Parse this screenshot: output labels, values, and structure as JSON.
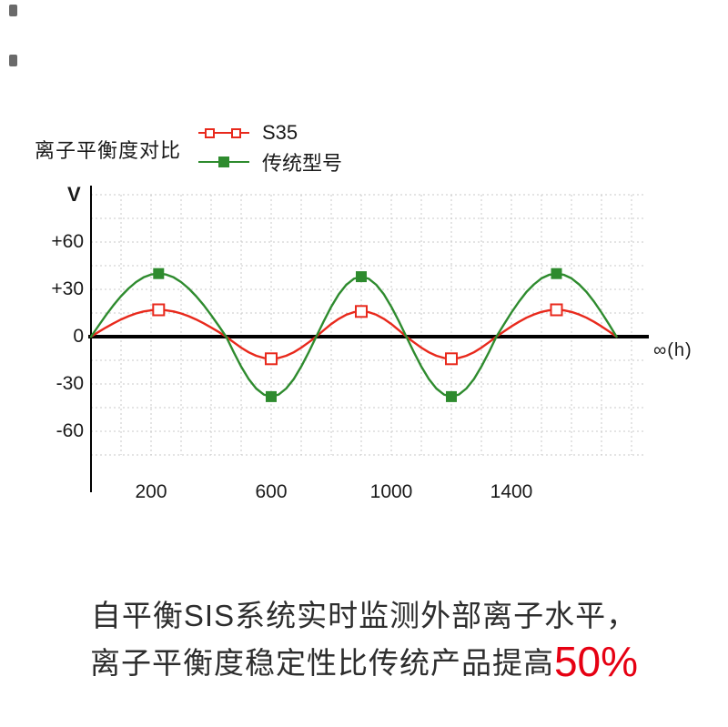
{
  "chart_data": {
    "type": "line",
    "title": "离子平衡度对比",
    "ylabel": "V",
    "x_axis_end_label": "∞(h)",
    "grid": true,
    "legend_position": "top",
    "xlim": [
      0,
      1850
    ],
    "ylim": [
      -75,
      95
    ],
    "y_ticks": [
      {
        "label": "+60",
        "value": 60
      },
      {
        "label": "+30",
        "value": 30
      },
      {
        "label": "0",
        "value": 0
      },
      {
        "label": "-30",
        "value": -30
      },
      {
        "label": "-60",
        "value": -60
      }
    ],
    "x_ticks": [
      {
        "label": "200",
        "value": 200
      },
      {
        "label": "600",
        "value": 600
      },
      {
        "label": "1000",
        "value": 1000
      },
      {
        "label": "1400",
        "value": 1400
      }
    ],
    "x": [
      0,
      25,
      50,
      75,
      100,
      125,
      150,
      175,
      200,
      225,
      250,
      275,
      300,
      325,
      350,
      375,
      400,
      425,
      450,
      475,
      500,
      525,
      550,
      575,
      600,
      625,
      650,
      675,
      700,
      725,
      750,
      775,
      800,
      825,
      850,
      875,
      900,
      925,
      950,
      975,
      1000,
      1025,
      1050,
      1075,
      1100,
      1125,
      1150,
      1175,
      1200,
      1225,
      1250,
      1275,
      1300,
      1325,
      1350,
      1375,
      1400,
      1425,
      1450,
      1475,
      1500,
      1525,
      1550,
      1575,
      1600,
      1625,
      1650,
      1675,
      1700,
      1725,
      1750
    ],
    "series": [
      {
        "name": "S35",
        "color": "#e8291c",
        "marker": "open-square",
        "values": [
          0,
          3,
          5.8,
          8.5,
          10.9,
          13,
          14.7,
          16,
          16.7,
          17,
          16.7,
          16,
          14.7,
          13,
          10.9,
          8.5,
          5.8,
          3,
          0,
          -3.6,
          -7,
          -9.9,
          -12.1,
          -13.5,
          -14,
          -13.5,
          -12.1,
          -9.9,
          -7,
          -3.6,
          0,
          4.1,
          8,
          11.3,
          13.9,
          15.5,
          16,
          15.5,
          13.9,
          11.3,
          8,
          4.1,
          0,
          -3.6,
          -7,
          -9.9,
          -12.1,
          -13.5,
          -14,
          -13.5,
          -12.1,
          -9.9,
          -7,
          -3.6,
          0,
          3.3,
          6.5,
          9.4,
          12,
          14.1,
          15.7,
          16.7,
          17,
          16.7,
          15.7,
          14.1,
          12,
          9.4,
          6.5,
          3.3,
          0
        ],
        "marker_points": [
          [
            225,
            17
          ],
          [
            600,
            -14
          ],
          [
            900,
            16
          ],
          [
            1200,
            -14
          ],
          [
            1550,
            17
          ]
        ]
      },
      {
        "name": "传统型号",
        "color": "#2e8b2e",
        "marker": "filled-square",
        "values": [
          0,
          6.9,
          13.7,
          20,
          25.7,
          30.6,
          34.6,
          37.6,
          39.4,
          40,
          39.4,
          37.6,
          34.6,
          30.6,
          25.7,
          20,
          13.7,
          6.9,
          0,
          -9.8,
          -19,
          -26.9,
          -32.9,
          -36.7,
          -38,
          -36.7,
          -32.9,
          -26.9,
          -19,
          -9.8,
          0,
          9.8,
          19,
          26.9,
          32.9,
          36.7,
          38,
          36.7,
          32.9,
          26.9,
          19,
          9.8,
          0,
          -9.8,
          -19,
          -26.9,
          -32.9,
          -36.7,
          -38,
          -36.7,
          -32.9,
          -26.9,
          -19,
          -9.8,
          0,
          7.8,
          15.3,
          22.2,
          28.3,
          33.2,
          37,
          39.2,
          40,
          39.2,
          37,
          33.2,
          28.3,
          22.2,
          15.3,
          7.8,
          0
        ],
        "marker_points": [
          [
            225,
            40
          ],
          [
            600,
            -38
          ],
          [
            900,
            38
          ],
          [
            1200,
            -38
          ],
          [
            1550,
            40
          ]
        ]
      }
    ],
    "grid_color": "#c9c9c9",
    "axis_color": "#000000"
  },
  "caption": {
    "line1": "自平衡SIS系统实时监测外部离子水平，",
    "line2_prefix": "离子平衡度稳定性比传统产品提高",
    "line2_highlight": "50%",
    "highlight_color": "#e60012"
  }
}
